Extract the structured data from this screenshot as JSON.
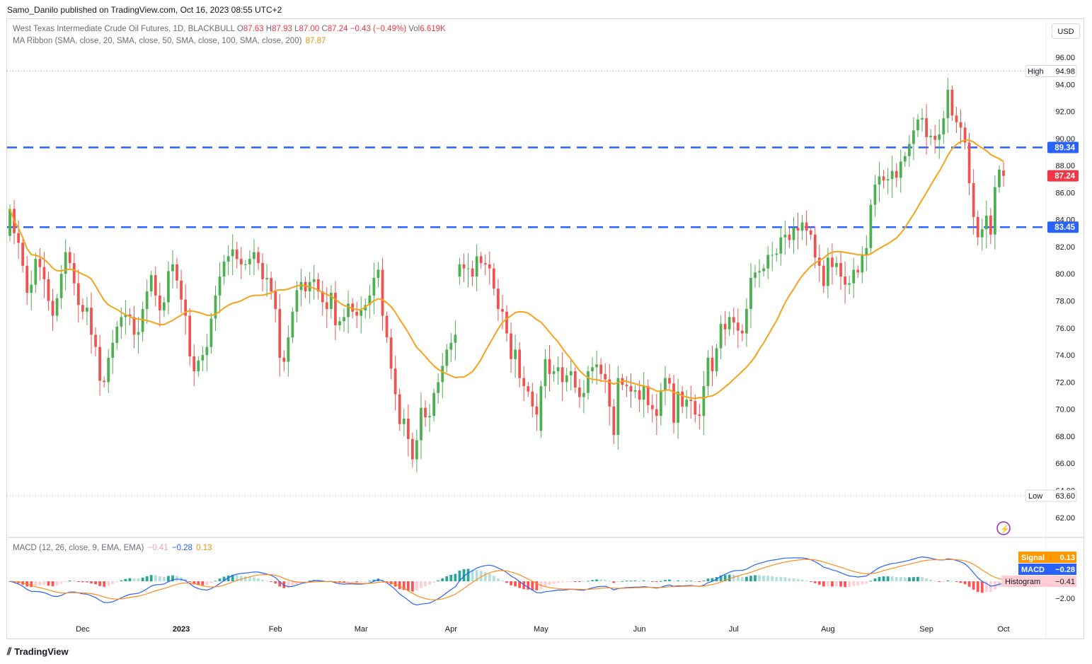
{
  "publisher": "Samo_Danilo published on TradingView.com, Oct 16, 2023 08:55 UTC+2",
  "legend": {
    "symbol": "West Texas Intermediate Crude Oil Futures, 1D, BLACKBULL",
    "o_label": "O",
    "o_value": "87.63",
    "h_label": "H",
    "h_value": "87.93",
    "l_label": "L",
    "l_value": "87.00",
    "c_label": "C",
    "c_value": "87.24",
    "change": "−0.43 (−0.49%)",
    "vol_label": "Vol",
    "vol_value": "6.619K",
    "ma_label": "MA Ribbon (SMA, close, 20, SMA, close, 50, SMA, close, 100, SMA, close, 200)",
    "ma_value": "87.87",
    "macd_label": "MACD (12, 26, close, 9, EMA, EMA)",
    "macd_hist": "−0.41",
    "macd_macd": "−0.28",
    "macd_signal": "0.13"
  },
  "currency_button": "USD",
  "footer": "TradingView",
  "colors": {
    "up": "#4caf50",
    "down": "#ef5350",
    "ma": "#f7a21b",
    "level": "#2962ff",
    "macd": "#2962ff",
    "signal": "#ff8c1a",
    "hist_up_strong": "#26a69a",
    "hist_up_weak": "#b2dfdb",
    "hist_down_strong": "#ff5252",
    "hist_down_weak": "#ffcdd2"
  },
  "chart_data": {
    "type": "candlestick",
    "title": "West Texas Intermediate Crude Oil Futures, 1D, BLACKBULL",
    "x_tick_labels": [
      "Dec",
      "2023",
      "Feb",
      "Mar",
      "Apr",
      "May",
      "Jun",
      "Jul",
      "Aug",
      "Sep",
      "Oct"
    ],
    "y_tick_labels": [
      "96.00",
      "94.00",
      "92.00",
      "90.00",
      "88.00",
      "86.00",
      "84.00",
      "82.00",
      "80.00",
      "78.00",
      "76.00",
      "74.00",
      "72.00",
      "70.00",
      "68.00",
      "66.00",
      "64.00",
      "62.00"
    ],
    "ylim": [
      60.5,
      97.5
    ],
    "horizontal_levels": [
      89.34,
      83.45
    ],
    "high": {
      "label": "High",
      "value": "94.98"
    },
    "low": {
      "label": "Low",
      "value": "63.60"
    },
    "last_price": "87.24",
    "level_labels": [
      "89.34",
      "83.45"
    ],
    "closes": [
      84.8,
      83,
      82.3,
      80.6,
      78.6,
      79.2,
      81.1,
      80.5,
      79.6,
      78,
      76.9,
      78.2,
      80,
      81.6,
      80.8,
      79.3,
      77.7,
      77.2,
      77.5,
      75.5,
      74.6,
      72.1,
      72,
      73.8,
      74.9,
      76.1,
      76.8,
      77,
      76.8,
      75.5,
      75.7,
      77.4,
      78.7,
      79.9,
      78.4,
      77.3,
      77.9,
      80.2,
      80.7,
      79.5,
      78.1,
      76.9,
      73.9,
      72.8,
      73.6,
      74,
      74.6,
      76.7,
      78.4,
      79.8,
      80.9,
      81.3,
      81.8,
      81.1,
      80.7,
      80.7,
      81.1,
      81.6,
      80.8,
      79.6,
      79.7,
      78.7,
      77.4,
      73.8,
      73.5,
      75.3,
      77.2,
      78.8,
      79.4,
      78.7,
      79.4,
      79.6,
      78.7,
      77.9,
      77.4,
      78.6,
      76.2,
      76.5,
      76.8,
      77.8,
      77.2,
      76.9,
      77.3,
      77.7,
      78.4,
      79.7,
      80.3,
      76.9,
      75.3,
      73,
      71.1,
      68.9,
      69.3,
      67.8,
      66.3,
      67.7,
      70.1,
      69.4,
      69.5,
      71.2,
      72,
      73.2,
      74.4,
      74.9,
      75.5,
      80.7,
      80.4,
      80.4,
      79.8,
      81.3,
      80.8,
      80.7,
      80.4,
      78.9,
      77.4,
      77.2,
      75.6,
      73.7,
      74.4,
      72.3,
      71.7,
      71.3,
      70.2,
      69.6,
      71.7,
      73.7,
      72.6,
      72.8,
      73.1,
      72,
      72.5,
      72.8,
      71.6,
      70.9,
      71.2,
      72.8,
      73.1,
      73.3,
      72.6,
      72.2,
      70.2,
      68.1,
      72.3,
      71.8,
      71.7,
      71.3,
      71.4,
      70.7,
      71.7,
      70.3,
      70,
      69.5,
      71.4,
      72.3,
      71.9,
      69,
      71.3,
      70.2,
      70.7,
      70.6,
      69.6,
      69.5,
      71.7,
      73.8,
      72.8,
      74.5,
      76.3,
      75.9,
      76.8,
      76.4,
      75.8,
      75.6,
      77.4,
      79.7,
      80.1,
      80.2,
      80.4,
      81.4,
      81.4,
      81.5,
      82.7,
      82.9,
      82.5,
      83.4,
      83.2,
      83.8,
      83.2,
      82.9,
      81.2,
      80.6,
      79.1,
      81.2,
      80.5,
      80.8,
      79.8,
      79.2,
      79.3,
      80.3,
      80.1,
      81.4,
      81.9,
      85.1,
      86.6,
      87.2,
      86.9,
      87,
      87.6,
      87.1,
      88.3,
      88.7,
      89.6,
      90.6,
      91.4,
      91.5,
      90.1,
      90.2,
      89.9,
      90.3,
      91.5,
      93.6,
      91.7,
      91.2,
      90.8,
      89.7,
      86.7,
      84.2,
      82.7,
      83.3,
      84.3,
      82.9,
      86.4,
      87.7,
      87.24
    ],
    "opens": [
      82.8,
      84.8,
      83,
      82.3,
      80.6,
      78.6,
      79.2,
      81.1,
      80.5,
      79.6,
      78,
      76.9,
      78.2,
      80,
      81.6,
      80.8,
      79.3,
      77.7,
      77.2,
      77.5,
      75.5,
      74.6,
      72.1,
      72,
      73.8,
      74.9,
      76.1,
      76.8,
      77,
      76.8,
      75.5,
      75.7,
      77.4,
      78.7,
      79.9,
      78.4,
      77.3,
      77.9,
      80.2,
      80.7,
      79.5,
      78.1,
      76.9,
      73.9,
      72.8,
      73.6,
      74,
      74.6,
      76.7,
      78.4,
      79.8,
      80.9,
      81.3,
      81.8,
      81.1,
      80.7,
      80.7,
      81.1,
      81.6,
      80.8,
      79.6,
      79.7,
      78.7,
      77.4,
      73.8,
      73.5,
      75.3,
      77.2,
      78.8,
      79.4,
      78.7,
      79.4,
      79.6,
      78.7,
      77.9,
      77.4,
      78.6,
      76.2,
      76.5,
      76.8,
      77.8,
      77.2,
      76.9,
      77.3,
      77.7,
      78.4,
      79.7,
      80.3,
      76.9,
      75.3,
      73,
      71.1,
      68.9,
      69.3,
      67.8,
      66.3,
      67.7,
      70.1,
      69.4,
      69.5,
      71.2,
      72,
      73.2,
      74.4,
      74.9,
      79.8,
      80.7,
      80.4,
      80.4,
      79.8,
      81.3,
      80.8,
      80.7,
      80.4,
      78.9,
      77.4,
      77.2,
      75.6,
      73.7,
      74.4,
      72.3,
      71.7,
      71.3,
      70.2,
      68.4,
      71.7,
      73.7,
      72.6,
      72.8,
      73.1,
      72,
      72.5,
      72.8,
      71.6,
      70.9,
      71.2,
      72.8,
      73.1,
      73.3,
      72.6,
      72.2,
      70.2,
      68.1,
      72.3,
      71.8,
      71.7,
      71.3,
      71.4,
      70.7,
      71.7,
      70.3,
      70,
      69.5,
      71.4,
      72.3,
      71.9,
      69,
      71.3,
      70.2,
      70.7,
      70.6,
      69.6,
      69.5,
      71.7,
      73.8,
      72.8,
      74.5,
      76.3,
      75.9,
      76.8,
      76.4,
      75.8,
      75.6,
      77.4,
      79.7,
      80.1,
      80.2,
      80.4,
      81.4,
      81.4,
      81.5,
      82.7,
      82.9,
      82.5,
      83.4,
      83.2,
      83.8,
      83.2,
      82.9,
      81.2,
      80.6,
      79.1,
      81.2,
      80.5,
      80.8,
      79.8,
      79.2,
      79.3,
      80.3,
      80.1,
      81.4,
      81.9,
      85.1,
      86.6,
      87.2,
      86.9,
      87,
      87.6,
      87.1,
      88.3,
      88.7,
      89.6,
      90.6,
      91.4,
      91.5,
      90.1,
      90.2,
      89.9,
      90.3,
      91.5,
      93.6,
      91.7,
      91.2,
      90.8,
      89.7,
      86.7,
      84.2,
      82.7,
      83.3,
      84.3,
      82.9,
      86.4,
      87.63
    ]
  }
}
